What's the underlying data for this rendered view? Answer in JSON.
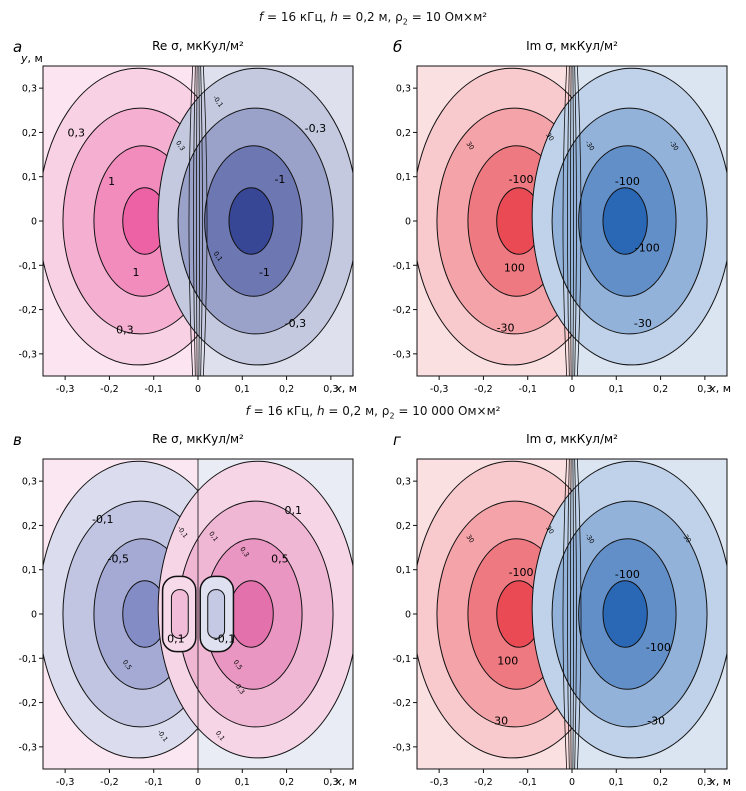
{
  "figure": {
    "row_titles": [
      {
        "f": "f",
        "f_val": " = 16 кГц, ",
        "h": "h",
        "h_val": " = 0,2 м, ρ",
        "sub": "2",
        "rho_val": " = 10 Ом×м²"
      },
      {
        "f": "f",
        "f_val": " = 16 кГц, ",
        "h": "h",
        "h_val": " = 0,2 м, ρ",
        "sub": "2",
        "rho_val": " = 10 000 Ом×м²"
      }
    ]
  },
  "chart_data": [
    {
      "panel": "а",
      "type": "contour",
      "title": "Re σ, мкКул/м²",
      "xlabel": "x, м",
      "ylabel": "y, м",
      "xlim": [
        -0.35,
        0.35
      ],
      "ylim": [
        -0.35,
        0.35
      ],
      "xticks": [
        "-0,3",
        "-0,2",
        "-0,1",
        "0",
        "0,1",
        "0,2",
        "0,3"
      ],
      "yticks": [
        "0,3",
        "0,2",
        "0,1",
        "0",
        "-0,1",
        "-0,2",
        "-0,3"
      ],
      "contour_levels": [
        "0,3",
        "1",
        "-0,3",
        "-1",
        "0,1",
        "-0,1"
      ],
      "labels": [
        {
          "text": "0,3",
          "x": -0.275,
          "y": 0.2
        },
        {
          "text": "1",
          "x": -0.195,
          "y": 0.09
        },
        {
          "text": "1",
          "x": -0.14,
          "y": -0.115
        },
        {
          "text": "0,3",
          "x": -0.165,
          "y": -0.245
        },
        {
          "text": "-0,3",
          "x": 0.265,
          "y": 0.21
        },
        {
          "text": "-1",
          "x": 0.185,
          "y": 0.095
        },
        {
          "text": "-1",
          "x": 0.15,
          "y": -0.115
        },
        {
          "text": "-0,3",
          "x": 0.22,
          "y": -0.23
        }
      ],
      "small_labels": [
        {
          "text": "-0,1",
          "x": 0.045,
          "y": 0.27
        },
        {
          "text": "0,1",
          "x": 0.045,
          "y": -0.08
        },
        {
          "text": "0,3",
          "x": -0.04,
          "y": 0.17
        }
      ],
      "colors": {
        "positive": "#eb5aa0",
        "negative": "#2e3d8f"
      }
    },
    {
      "panel": "б",
      "type": "contour",
      "title": "Im σ, мкКул/м²",
      "xlabel": "x, м",
      "ylabel": "",
      "xlim": [
        -0.35,
        0.35
      ],
      "ylim": [
        -0.35,
        0.35
      ],
      "xticks": [
        "-0,3",
        "-0,2",
        "-0,1",
        "0",
        "0,1",
        "0,2",
        "0,3"
      ],
      "yticks": [
        "0,3",
        "0,2",
        "0,1",
        "0",
        "-0,1",
        "-0,2",
        "-0,3"
      ],
      "contour_levels": [
        "100",
        "30",
        "-100",
        "-30"
      ],
      "labels": [
        {
          "text": "-100",
          "x": -0.115,
          "y": 0.095
        },
        {
          "text": "100",
          "x": -0.13,
          "y": -0.105
        },
        {
          "text": "-30",
          "x": -0.15,
          "y": -0.24
        },
        {
          "text": "-100",
          "x": 0.125,
          "y": 0.09
        },
        {
          "text": "-100",
          "x": 0.17,
          "y": -0.06
        },
        {
          "text": "-30",
          "x": 0.16,
          "y": -0.23
        }
      ],
      "small_labels": [
        {
          "text": "30",
          "x": -0.23,
          "y": 0.17
        },
        {
          "text": "30",
          "x": -0.05,
          "y": 0.19
        },
        {
          "text": "-30",
          "x": 0.04,
          "y": 0.17
        },
        {
          "text": "-30",
          "x": 0.23,
          "y": 0.17
        }
      ],
      "colors": {
        "positive": "#e8404b",
        "negative": "#1f5fb0"
      }
    },
    {
      "panel": "в",
      "type": "contour",
      "title": "Re σ, мкКул/м²",
      "xlabel": "x, м",
      "ylabel": "",
      "xlim": [
        -0.35,
        0.35
      ],
      "ylim": [
        -0.35,
        0.35
      ],
      "xticks": [
        "-0,3",
        "-0,2",
        "-0,1",
        "0",
        "0,1",
        "0,2",
        "0,3"
      ],
      "yticks": [
        "0,3",
        "0,2",
        "0,1",
        "0",
        "-0,1",
        "-0,2",
        "-0,3"
      ],
      "contour_levels": [
        "-0,1",
        "-0,5",
        "0,1",
        "0,5"
      ],
      "labels": [
        {
          "text": "-0,1",
          "x": -0.215,
          "y": 0.215
        },
        {
          "text": "-0,5",
          "x": -0.18,
          "y": 0.125
        },
        {
          "text": "0,1",
          "x": -0.05,
          "y": -0.055
        },
        {
          "text": "0,1",
          "x": 0.215,
          "y": 0.235
        },
        {
          "text": "0,5",
          "x": 0.185,
          "y": 0.125
        },
        {
          "text": "-0,1",
          "x": 0.06,
          "y": -0.055
        }
      ],
      "small_labels": [
        {
          "text": "-0,1",
          "x": -0.035,
          "y": 0.185
        },
        {
          "text": "0,1",
          "x": 0.035,
          "y": 0.175
        },
        {
          "text": "0,3",
          "x": 0.105,
          "y": 0.14
        },
        {
          "text": "0,5",
          "x": -0.16,
          "y": -0.115
        },
        {
          "text": "0,5",
          "x": 0.09,
          "y": -0.115
        },
        {
          "text": "0,3",
          "x": 0.095,
          "y": -0.17
        },
        {
          "text": "-0,1",
          "x": -0.08,
          "y": -0.275
        },
        {
          "text": "0,1",
          "x": 0.05,
          "y": -0.275
        }
      ],
      "colors": {
        "positive": "#e06aa8",
        "negative": "#7e86c2"
      }
    },
    {
      "panel": "г",
      "type": "contour",
      "title": "Im σ, мкКул/м²",
      "xlabel": "x, м",
      "ylabel": "",
      "xlim": [
        -0.35,
        0.35
      ],
      "ylim": [
        -0.35,
        0.35
      ],
      "xticks": [
        "-0,3",
        "-0,2",
        "-0,1",
        "0",
        "0,1",
        "0,2",
        "0,3"
      ],
      "yticks": [
        "0,3",
        "0,2",
        "0,1",
        "0",
        "-0,1",
        "-0,2",
        "-0,3"
      ],
      "contour_levels": [
        "100",
        "30",
        "-100",
        "-30"
      ],
      "labels": [
        {
          "text": "-100",
          "x": -0.115,
          "y": 0.095
        },
        {
          "text": "100",
          "x": -0.145,
          "y": -0.105
        },
        {
          "text": "30",
          "x": -0.16,
          "y": -0.24
        },
        {
          "text": "-100",
          "x": 0.125,
          "y": 0.09
        },
        {
          "text": "-100",
          "x": 0.195,
          "y": -0.075
        },
        {
          "text": "-30",
          "x": 0.19,
          "y": -0.24
        }
      ],
      "small_labels": [
        {
          "text": "30",
          "x": -0.23,
          "y": 0.17
        },
        {
          "text": "30",
          "x": -0.05,
          "y": 0.19
        },
        {
          "text": "-30",
          "x": 0.04,
          "y": 0.17
        },
        {
          "text": "30",
          "x": 0.26,
          "y": 0.17
        }
      ],
      "colors": {
        "positive": "#e8404b",
        "negative": "#1f5fb0"
      }
    }
  ]
}
